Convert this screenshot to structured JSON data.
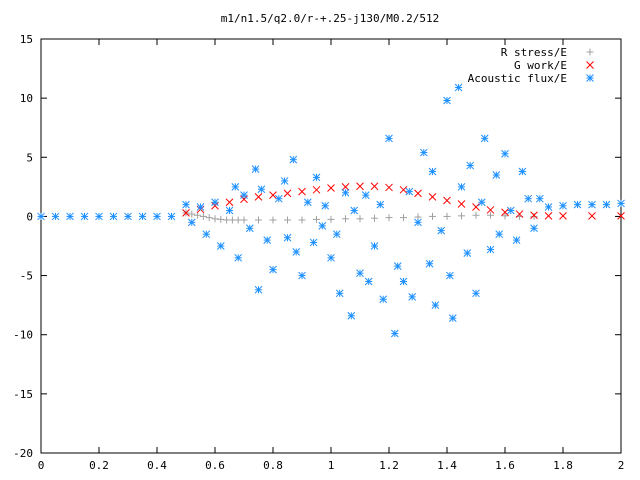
{
  "chart_data": {
    "type": "scatter",
    "title": "m1/n1.5/q2.0/r-+.25-j130/M0.2/512",
    "xlabel": "",
    "ylabel": "",
    "xlim": [
      0,
      2
    ],
    "ylim": [
      -20,
      15
    ],
    "grid": false,
    "legend_position": "top-right",
    "xticks": [
      "0",
      "0.2",
      "0.4",
      "0.6",
      "0.8",
      "1",
      "1.2",
      "1.4",
      "1.6",
      "1.8",
      "2"
    ],
    "yticks": [
      "15",
      "10",
      "5",
      "0",
      "-5",
      "-10",
      "-15",
      "-20"
    ],
    "series": [
      {
        "name": "R stress/E",
        "marker": "plus",
        "color": "#a0a0a0",
        "x": [
          0.5,
          0.52,
          0.54,
          0.56,
          0.58,
          0.6,
          0.62,
          0.64,
          0.66,
          0.68,
          0.7,
          0.75,
          0.8,
          0.85,
          0.9,
          0.95,
          1.0,
          1.05,
          1.1,
          1.15,
          1.2,
          1.25,
          1.3,
          1.35,
          1.4,
          1.45,
          1.5,
          1.55,
          1.6,
          1.65,
          1.7
        ],
        "y": [
          0.3,
          0.2,
          0.1,
          0.0,
          -0.1,
          -0.2,
          -0.25,
          -0.3,
          -0.3,
          -0.3,
          -0.3,
          -0.3,
          -0.3,
          -0.3,
          -0.3,
          -0.25,
          -0.25,
          -0.2,
          -0.2,
          -0.15,
          -0.1,
          -0.1,
          -0.05,
          0.0,
          0.0,
          0.05,
          0.1,
          0.1,
          0.05,
          0.0,
          0.0
        ]
      },
      {
        "name": "G work/E",
        "marker": "cross",
        "color": "#ff0000",
        "x": [
          0.5,
          0.55,
          0.6,
          0.65,
          0.7,
          0.75,
          0.8,
          0.85,
          0.9,
          0.95,
          1.0,
          1.05,
          1.1,
          1.15,
          1.2,
          1.25,
          1.3,
          1.35,
          1.4,
          1.45,
          1.5,
          1.55,
          1.6,
          1.65,
          1.7,
          1.75,
          1.8,
          1.9,
          2.0
        ],
        "y": [
          0.3,
          0.6,
          0.9,
          1.2,
          1.45,
          1.65,
          1.8,
          1.95,
          2.1,
          2.25,
          2.4,
          2.5,
          2.55,
          2.55,
          2.45,
          2.25,
          1.95,
          1.65,
          1.35,
          1.05,
          0.8,
          0.55,
          0.35,
          0.2,
          0.1,
          0.05,
          0.05,
          0.05,
          0.05
        ]
      },
      {
        "name": "Acoustic flux/E",
        "marker": "asterisk",
        "color": "#1e90ff",
        "x": [
          0.0,
          0.05,
          0.1,
          0.15,
          0.2,
          0.25,
          0.3,
          0.35,
          0.4,
          0.45,
          0.5,
          0.52,
          0.55,
          0.57,
          0.6,
          0.62,
          0.65,
          0.67,
          0.68,
          0.7,
          0.72,
          0.74,
          0.75,
          0.76,
          0.78,
          0.8,
          0.82,
          0.84,
          0.85,
          0.87,
          0.88,
          0.9,
          0.92,
          0.94,
          0.95,
          0.97,
          0.98,
          1.0,
          1.02,
          1.03,
          1.05,
          1.07,
          1.08,
          1.1,
          1.12,
          1.13,
          1.15,
          1.17,
          1.18,
          1.2,
          1.22,
          1.23,
          1.25,
          1.27,
          1.28,
          1.3,
          1.32,
          1.34,
          1.35,
          1.36,
          1.38,
          1.4,
          1.41,
          1.42,
          1.44,
          1.45,
          1.47,
          1.48,
          1.5,
          1.52,
          1.53,
          1.55,
          1.57,
          1.58,
          1.6,
          1.62,
          1.64,
          1.66,
          1.68,
          1.7,
          1.72,
          1.75,
          1.8,
          1.85,
          1.9,
          1.95,
          2.0
        ],
        "y": [
          0.0,
          0.0,
          0.0,
          0.0,
          0.0,
          0.0,
          0.0,
          0.0,
          0.0,
          0.0,
          1.0,
          -0.5,
          0.8,
          -1.5,
          1.2,
          -2.5,
          0.5,
          2.5,
          -3.5,
          1.8,
          -1.0,
          4.0,
          -6.2,
          2.3,
          -2.0,
          -4.5,
          1.5,
          3.0,
          -1.8,
          4.8,
          -3.0,
          -5.0,
          1.2,
          -2.2,
          3.3,
          -0.8,
          0.9,
          -3.5,
          -1.5,
          -6.5,
          2.0,
          -8.4,
          0.5,
          -4.8,
          1.8,
          -5.5,
          -2.5,
          1.0,
          -7.0,
          6.6,
          -9.9,
          -4.2,
          -5.5,
          2.1,
          -6.8,
          -0.5,
          5.4,
          -4.0,
          3.8,
          -7.5,
          -1.2,
          9.8,
          -5.0,
          -8.6,
          10.9,
          2.5,
          -3.1,
          4.3,
          -6.5,
          1.2,
          6.6,
          -2.8,
          3.5,
          -1.5,
          5.3,
          0.5,
          -2.0,
          3.8,
          1.5,
          -1.0,
          1.5,
          0.8,
          0.9,
          1.0,
          1.0,
          1.0,
          1.1
        ]
      }
    ]
  }
}
